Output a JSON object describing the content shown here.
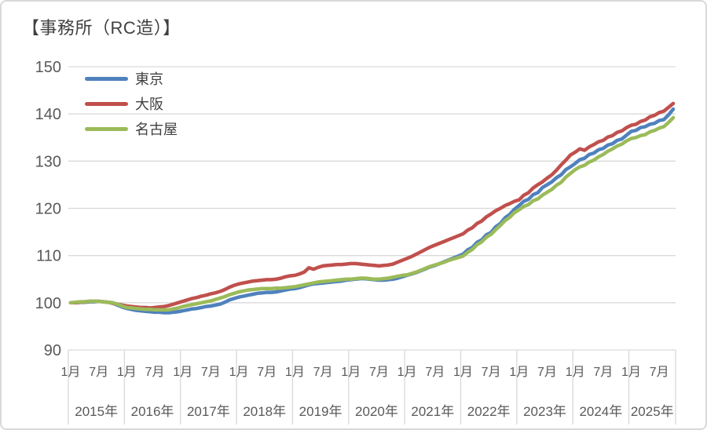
{
  "title": "【事務所（RC造）】",
  "chart_data": {
    "type": "line",
    "title": "【事務所（RC造）】",
    "grid": true,
    "legend_position": "top-left-inside",
    "ylim": [
      90,
      150
    ],
    "y_ticks": [
      90,
      100,
      110,
      120,
      130,
      140,
      150
    ],
    "x_unit_labels": [
      "1月",
      "7月"
    ],
    "years": [
      "2015年",
      "2016年",
      "2017年",
      "2018年",
      "2019年",
      "2020年",
      "2021年",
      "2022年",
      "2023年",
      "2024年",
      "2025年"
    ],
    "months_per_year": [
      12,
      12,
      12,
      12,
      12,
      12,
      12,
      12,
      12,
      12,
      10
    ],
    "x_start": "2015年1月",
    "x_end": "2025年10月",
    "gridline_color": "#d9d9d9",
    "axis_text_color": "#595959",
    "series": [
      {
        "id": "tokyo",
        "name": "東京",
        "color": "#4F81BD",
        "values": [
          100.0,
          100.0,
          100.1,
          100.1,
          100.2,
          100.2,
          100.3,
          100.2,
          100.1,
          99.9,
          99.5,
          99.1,
          98.8,
          98.6,
          98.4,
          98.3,
          98.2,
          98.1,
          98.0,
          98.0,
          97.9,
          97.9,
          98.0,
          98.1,
          98.3,
          98.5,
          98.7,
          98.8,
          99.0,
          99.2,
          99.3,
          99.5,
          99.7,
          100.1,
          100.6,
          100.9,
          101.2,
          101.4,
          101.6,
          101.8,
          102.0,
          102.1,
          102.2,
          102.2,
          102.3,
          102.5,
          102.7,
          102.9,
          103.0,
          103.2,
          103.5,
          103.8,
          104.0,
          104.1,
          104.2,
          104.3,
          104.4,
          104.5,
          104.6,
          104.8,
          104.9,
          105.0,
          105.1,
          105.1,
          105.0,
          104.9,
          104.8,
          104.8,
          104.9,
          105.0,
          105.2,
          105.5,
          105.8,
          106.1,
          106.4,
          106.8,
          107.2,
          107.6,
          107.9,
          108.3,
          108.7,
          109.1,
          109.5,
          109.9,
          110.3,
          111.2,
          111.7,
          112.8,
          113.3,
          114.4,
          114.9,
          116.1,
          116.8,
          118.0,
          118.7,
          119.8,
          120.6,
          121.5,
          121.9,
          122.9,
          123.3,
          124.4,
          125.0,
          125.6,
          126.5,
          127.1,
          128.2,
          128.8,
          129.5,
          130.3,
          130.6,
          131.4,
          131.7,
          132.4,
          132.7,
          133.4,
          133.7,
          134.4,
          134.7,
          135.5,
          136.3,
          136.5,
          137.1,
          137.3,
          137.8,
          138.0,
          138.6,
          138.8,
          139.8,
          141.0
        ]
      },
      {
        "id": "osaka",
        "name": "大阪",
        "color": "#C0504D",
        "values": [
          100.0,
          100.0,
          100.1,
          100.2,
          100.3,
          100.3,
          100.3,
          100.2,
          100.1,
          99.9,
          99.7,
          99.5,
          99.3,
          99.2,
          99.1,
          99.0,
          99.0,
          98.9,
          99.0,
          99.1,
          99.2,
          99.4,
          99.7,
          100.0,
          100.3,
          100.6,
          100.9,
          101.1,
          101.4,
          101.6,
          101.9,
          102.1,
          102.4,
          102.8,
          103.3,
          103.7,
          104.0,
          104.2,
          104.4,
          104.6,
          104.7,
          104.8,
          104.9,
          104.9,
          105.0,
          105.2,
          105.5,
          105.7,
          105.8,
          106.1,
          106.5,
          107.4,
          107.1,
          107.5,
          107.8,
          107.9,
          108.0,
          108.1,
          108.1,
          108.2,
          108.3,
          108.3,
          108.2,
          108.1,
          108.0,
          107.9,
          107.8,
          107.9,
          108.0,
          108.2,
          108.6,
          109.0,
          109.4,
          109.8,
          110.3,
          110.8,
          111.3,
          111.8,
          112.2,
          112.6,
          113.0,
          113.4,
          113.8,
          114.2,
          114.6,
          115.4,
          115.9,
          116.8,
          117.3,
          118.2,
          118.8,
          119.5,
          120.0,
          120.6,
          121.0,
          121.5,
          121.8,
          122.8,
          123.3,
          124.3,
          125.0,
          125.6,
          126.4,
          127.1,
          128.1,
          129.2,
          130.2,
          131.3,
          131.9,
          132.6,
          132.3,
          133.0,
          133.5,
          134.1,
          134.4,
          135.1,
          135.4,
          136.1,
          136.4,
          137.1,
          137.6,
          137.8,
          138.4,
          138.7,
          139.4,
          139.7,
          140.3,
          140.6,
          141.4,
          142.2
        ]
      },
      {
        "id": "nagoya",
        "name": "名古屋",
        "color": "#9BBB59",
        "values": [
          100.0,
          100.1,
          100.2,
          100.2,
          100.3,
          100.3,
          100.3,
          100.2,
          100.1,
          100.0,
          99.7,
          99.3,
          99.0,
          98.9,
          98.8,
          98.7,
          98.6,
          98.6,
          98.5,
          98.5,
          98.5,
          98.5,
          98.7,
          98.9,
          99.2,
          99.4,
          99.6,
          99.8,
          100.0,
          100.2,
          100.4,
          100.7,
          101.0,
          101.3,
          101.7,
          102.0,
          102.3,
          102.5,
          102.7,
          102.8,
          102.9,
          103.0,
          103.0,
          103.0,
          103.1,
          103.1,
          103.2,
          103.3,
          103.4,
          103.6,
          103.8,
          104.0,
          104.2,
          104.4,
          104.5,
          104.6,
          104.7,
          104.8,
          104.9,
          105.0,
          105.0,
          105.1,
          105.2,
          105.2,
          105.1,
          105.0,
          105.0,
          105.1,
          105.2,
          105.4,
          105.6,
          105.8,
          105.9,
          106.2,
          106.5,
          106.9,
          107.3,
          107.7,
          108.0,
          108.3,
          108.6,
          109.0,
          109.3,
          109.6,
          109.9,
          110.7,
          111.3,
          112.3,
          112.9,
          113.9,
          114.5,
          115.5,
          116.4,
          117.4,
          118.1,
          119.1,
          119.7,
          120.4,
          120.8,
          121.6,
          122.0,
          122.8,
          123.4,
          124.0,
          124.9,
          125.5,
          126.6,
          127.4,
          128.2,
          128.8,
          129.1,
          129.8,
          130.2,
          130.9,
          131.4,
          132.1,
          132.6,
          133.2,
          133.6,
          134.3,
          134.8,
          135.0,
          135.4,
          135.6,
          136.2,
          136.5,
          137.0,
          137.3,
          138.2,
          139.2
        ]
      }
    ]
  }
}
